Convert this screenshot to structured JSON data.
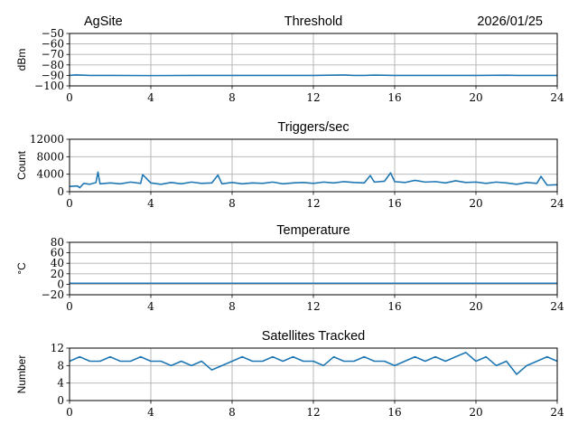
{
  "header": {
    "site": "AgSite",
    "date": "2026/01/25"
  },
  "style": {
    "line_color": "#1f77b4",
    "grid_color": "#b0b0b0"
  },
  "chart_data": [
    {
      "type": "line",
      "title": "Threshold",
      "xlabel": "",
      "ylabel": "dBm",
      "xlim": [
        0,
        24
      ],
      "ylim": [
        -100,
        -50
      ],
      "xticks": [
        0,
        4,
        8,
        12,
        16,
        20,
        24
      ],
      "yticks": [
        -100,
        -90,
        -80,
        -70,
        -60,
        -50
      ],
      "grid": true,
      "series": [
        {
          "x": [
            0,
            0.3,
            0.6,
            1,
            2,
            4,
            6,
            8,
            10,
            12,
            13.5,
            14,
            14.5,
            15,
            16,
            18,
            20,
            21.5,
            22,
            24
          ],
          "y": [
            -90,
            -89.5,
            -89.7,
            -90,
            -90,
            -90.2,
            -90,
            -90,
            -90,
            -90,
            -89.6,
            -90,
            -90,
            -89.7,
            -90,
            -90,
            -90,
            -89.8,
            -90,
            -90
          ]
        }
      ]
    },
    {
      "type": "line",
      "title": "Triggers/sec",
      "xlabel": "",
      "ylabel": "Count",
      "xlim": [
        0,
        24
      ],
      "ylim": [
        0,
        12000
      ],
      "xticks": [
        0,
        4,
        8,
        12,
        16,
        20,
        24
      ],
      "yticks": [
        0,
        4000,
        8000,
        12000
      ],
      "grid": true,
      "series": [
        {
          "x": [
            0,
            0.4,
            0.5,
            0.7,
            1.0,
            1.3,
            1.4,
            1.5,
            2.0,
            2.5,
            3.0,
            3.5,
            3.6,
            4.0,
            4.5,
            5.0,
            5.5,
            6.0,
            6.5,
            7.0,
            7.3,
            7.5,
            8.0,
            8.5,
            9.0,
            9.5,
            10.0,
            10.5,
            11.0,
            11.5,
            12.0,
            12.5,
            13.0,
            13.5,
            14.0,
            14.5,
            14.8,
            15.0,
            15.5,
            15.8,
            16.0,
            16.5,
            17.0,
            17.5,
            18.0,
            18.5,
            19.0,
            19.5,
            20.0,
            20.5,
            21.0,
            21.5,
            22.0,
            22.5,
            23.0,
            23.2,
            23.5,
            24.0
          ],
          "y": [
            1200,
            1300,
            900,
            1900,
            1700,
            2100,
            4500,
            1800,
            2000,
            1800,
            2200,
            1900,
            3900,
            2000,
            1700,
            2100,
            1800,
            2200,
            1900,
            2000,
            3800,
            1800,
            2100,
            1800,
            2000,
            1900,
            2200,
            1800,
            2000,
            2100,
            1900,
            2200,
            2000,
            2300,
            2100,
            2000,
            3700,
            2200,
            2400,
            4300,
            2300,
            2100,
            2600,
            2200,
            2300,
            2000,
            2500,
            2100,
            2200,
            1900,
            2200,
            2000,
            1700,
            2100,
            1900,
            3500,
            1500,
            1600
          ]
        }
      ]
    },
    {
      "type": "line",
      "title": "Temperature",
      "xlabel": "",
      "ylabel": "°C",
      "xlim": [
        0,
        24
      ],
      "ylim": [
        -20,
        80
      ],
      "xticks": [
        0,
        4,
        8,
        12,
        16,
        20,
        24
      ],
      "yticks": [
        -20,
        0,
        20,
        40,
        60,
        80
      ],
      "grid": true,
      "series": [
        {
          "x": [
            0,
            4,
            8,
            12,
            16,
            20,
            24
          ],
          "y": [
            2,
            2,
            2,
            2,
            2,
            2,
            2
          ]
        }
      ]
    },
    {
      "type": "line",
      "title": "Satellites Tracked",
      "xlabel": "",
      "ylabel": "Number",
      "xlim": [
        0,
        24
      ],
      "ylim": [
        0,
        12
      ],
      "xticks": [
        0,
        4,
        8,
        12,
        16,
        20,
        24
      ],
      "yticks": [
        0,
        4,
        8,
        12
      ],
      "grid": true,
      "series": [
        {
          "x": [
            0,
            0.5,
            1.0,
            1.5,
            2.0,
            2.5,
            3.0,
            3.5,
            4.0,
            4.5,
            5.0,
            5.5,
            6.0,
            6.5,
            7.0,
            7.5,
            8.0,
            8.5,
            9.0,
            9.5,
            10.0,
            10.5,
            11.0,
            11.5,
            12.0,
            12.5,
            13.0,
            13.5,
            14.0,
            14.5,
            15.0,
            15.5,
            16.0,
            16.5,
            17.0,
            17.5,
            18.0,
            18.5,
            19.0,
            19.5,
            20.0,
            20.5,
            21.0,
            21.5,
            22.0,
            22.5,
            23.0,
            23.5,
            24.0
          ],
          "y": [
            9,
            10,
            9,
            9,
            10,
            9,
            9,
            10,
            9,
            9,
            8,
            9,
            8,
            9,
            7,
            8,
            9,
            10,
            9,
            9,
            10,
            9,
            10,
            9,
            9,
            8,
            10,
            9,
            9,
            10,
            9,
            9,
            8,
            9,
            10,
            9,
            10,
            9,
            10,
            11,
            9,
            10,
            8,
            9,
            6,
            8,
            9,
            10,
            9
          ]
        }
      ]
    }
  ]
}
